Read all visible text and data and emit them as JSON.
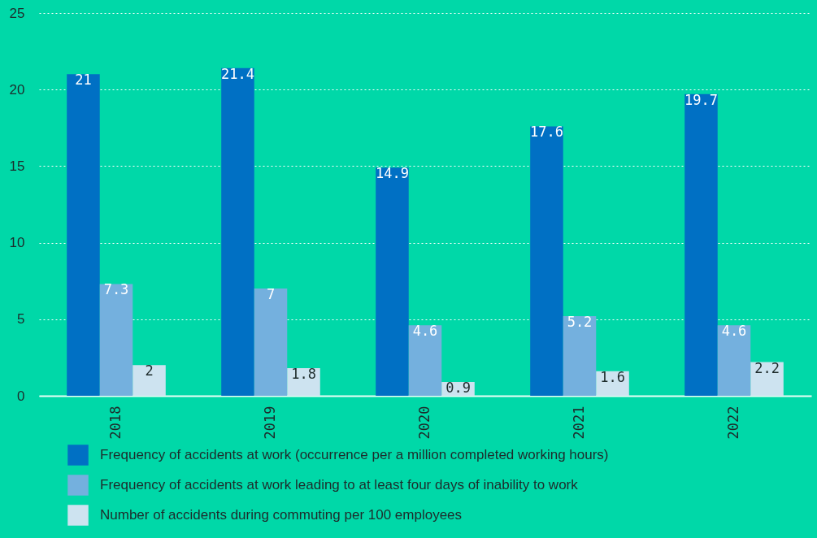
{
  "chart_data": {
    "type": "bar",
    "categories": [
      "2018",
      "2019",
      "2020",
      "2021",
      "2022"
    ],
    "series": [
      {
        "name": "Frequency of accidents at work (occurrence per a million completed working hours)",
        "color": "#0070c4",
        "values": [
          21,
          21.4,
          14.9,
          17.6,
          19.7
        ]
      },
      {
        "name": "Frequency of accidents at work leading to at least four days of inability to work",
        "color": "#74b0de",
        "values": [
          7.3,
          7,
          4.6,
          5.2,
          4.6
        ]
      },
      {
        "name": "Number of accidents during commuting per 100 employees",
        "color": "#cde3f0",
        "values": [
          2,
          1.8,
          0.9,
          1.6,
          2.2
        ]
      }
    ],
    "ylim": [
      0,
      25
    ],
    "yticks": [
      0,
      5,
      10,
      15,
      20,
      25
    ],
    "grid": "y",
    "legend": "bottom",
    "data_labels": true
  }
}
